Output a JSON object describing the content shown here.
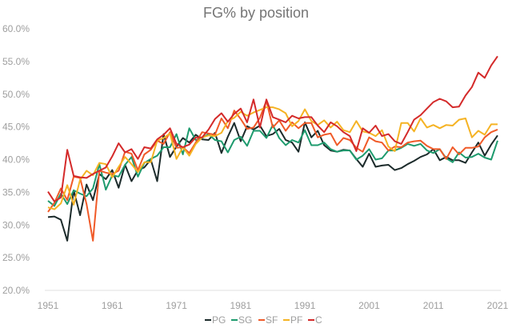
{
  "chart_data": {
    "type": "line",
    "title": "FG% by position",
    "xlabel": "",
    "ylabel": "",
    "ylim": [
      0.2,
      0.6
    ],
    "xlim": [
      1951,
      2021
    ],
    "grid": false,
    "legend_position": "bottom",
    "yticks": [
      "20.0%",
      "25.0%",
      "30.0%",
      "35.0%",
      "40.0%",
      "45.0%",
      "50.0%",
      "55.0%",
      "60.0%"
    ],
    "xticks": [
      "1951",
      "1961",
      "1971",
      "1981",
      "1991",
      "2001",
      "2011",
      "2021"
    ],
    "x": [
      1951,
      1952,
      1953,
      1954,
      1955,
      1956,
      1957,
      1958,
      1959,
      1960,
      1961,
      1962,
      1963,
      1964,
      1965,
      1966,
      1967,
      1968,
      1969,
      1970,
      1971,
      1972,
      1973,
      1974,
      1975,
      1976,
      1977,
      1978,
      1979,
      1980,
      1981,
      1982,
      1983,
      1984,
      1985,
      1986,
      1987,
      1988,
      1989,
      1990,
      1991,
      1992,
      1993,
      1994,
      1995,
      1996,
      1997,
      1998,
      1999,
      2000,
      2001,
      2002,
      2003,
      2004,
      2005,
      2006,
      2007,
      2008,
      2009,
      2010,
      2011,
      2012,
      2013,
      2014,
      2015,
      2016,
      2017,
      2018,
      2019,
      2020,
      2021
    ],
    "series": [
      {
        "name": "PG",
        "color": "#1c2b2b",
        "values": [
          31.2,
          31.3,
          30.8,
          27.6,
          35.3,
          31.5,
          36.2,
          33.8,
          37.8,
          37.0,
          38.4,
          35.7,
          39.2,
          36.7,
          38.4,
          38.8,
          40.0,
          36.7,
          43.9,
          40.4,
          42.0,
          43.3,
          42.6,
          43.8,
          43.1,
          43.0,
          44.1,
          41.0,
          43.5,
          45.6,
          42.8,
          45.1,
          44.6,
          45.2,
          43.6,
          43.9,
          44.7,
          43.0,
          42.6,
          41.2,
          45.7,
          43.4,
          44.4,
          42.2,
          41.4,
          41.2,
          41.5,
          41.4,
          40.1,
          38.9,
          40.9,
          38.9,
          39.1,
          39.2,
          38.4,
          38.7,
          39.3,
          39.8,
          40.4,
          40.8,
          41.6,
          39.9,
          40.4,
          39.9,
          39.9,
          39.5,
          41.1,
          42.6,
          40.6,
          42.3,
          43.7
        ]
      },
      {
        "name": "SG",
        "color": "#1e9b6e",
        "values": [
          33.7,
          32.9,
          34.8,
          33.2,
          35.3,
          34.8,
          34.4,
          35.6,
          39.3,
          35.4,
          37.6,
          37.4,
          39.2,
          40.4,
          37.4,
          39.5,
          40.1,
          40.6,
          41.9,
          41.9,
          43.9,
          40.8,
          44.8,
          43.0,
          43.3,
          43.9,
          43.0,
          42.8,
          41.1,
          43.0,
          43.5,
          42.1,
          44.4,
          44.4,
          43.3,
          45.3,
          43.3,
          42.2,
          43.0,
          42.6,
          44.5,
          42.2,
          42.2,
          42.6,
          41.6,
          41.2,
          41.4,
          41.4,
          40.0,
          40.6,
          41.6,
          40.0,
          40.2,
          41.4,
          41.4,
          41.8,
          42.4,
          42.1,
          42.4,
          41.4,
          41.0,
          41.6,
          40.2,
          39.6,
          41.1,
          40.3,
          40.4,
          40.9,
          40.3,
          40.0,
          42.9
        ]
      },
      {
        "name": "SF",
        "color": "#f05a28",
        "values": [
          32.0,
          33.4,
          35.6,
          33.8,
          37.4,
          37.2,
          33.2,
          27.6,
          38.3,
          38.0,
          37.8,
          38.3,
          41.2,
          40.9,
          38.4,
          40.8,
          41.5,
          42.9,
          42.4,
          44.2,
          41.8,
          41.9,
          41.0,
          42.6,
          44.2,
          44.0,
          43.8,
          46.3,
          44.8,
          47.5,
          46.2,
          44.7,
          44.9,
          46.4,
          49.0,
          44.9,
          46.0,
          44.4,
          45.7,
          44.8,
          45.6,
          45.6,
          43.4,
          43.8,
          44.0,
          42.2,
          43.3,
          43.0,
          41.8,
          41.2,
          43.4,
          42.8,
          42.6,
          41.4,
          42.0,
          41.9,
          42.6,
          42.8,
          42.9,
          42.1,
          41.6,
          41.6,
          40.1,
          41.9,
          40.8,
          41.8,
          41.8,
          42.0,
          43.4,
          44.2,
          44.6
        ]
      },
      {
        "name": "PF",
        "color": "#f5b324",
        "values": [
          32.7,
          32.4,
          33.3,
          36.1,
          33.1,
          36.9,
          38.3,
          37.6,
          39.5,
          39.3,
          37.3,
          38.9,
          40.4,
          39.3,
          38.1,
          39.6,
          39.6,
          42.9,
          43.3,
          44.0,
          40.1,
          41.9,
          40.6,
          42.4,
          43.4,
          43.7,
          43.6,
          44.1,
          45.9,
          46.4,
          47.3,
          46.7,
          47.2,
          47.6,
          48.0,
          48.0,
          47.7,
          47.1,
          45.1,
          45.9,
          47.7,
          45.9,
          45.3,
          46.0,
          44.9,
          45.8,
          44.5,
          44.2,
          45.9,
          44.3,
          44.1,
          43.6,
          44.5,
          42.0,
          41.3,
          45.6,
          45.6,
          44.3,
          46.3,
          44.9,
          45.3,
          44.8,
          45.3,
          45.2,
          46.1,
          46.3,
          43.4,
          44.4,
          43.8,
          45.4,
          45.4
        ]
      },
      {
        "name": "C",
        "color": "#d42a2a",
        "values": [
          35.1,
          33.6,
          34.2,
          41.5,
          37.5,
          37.3,
          37.2,
          37.8,
          38.3,
          38.8,
          40.5,
          42.5,
          41.1,
          41.6,
          40.1,
          41.9,
          41.7,
          43.1,
          43.8,
          44.8,
          42.4,
          41.9,
          42.3,
          43.4,
          43.4,
          44.6,
          46.2,
          47.1,
          45.8,
          47.0,
          47.8,
          45.7,
          49.2,
          44.9,
          49.2,
          46.5,
          46.1,
          45.7,
          46.7,
          46.3,
          46.5,
          46.5,
          45.2,
          44.2,
          45.7,
          45.1,
          44.2,
          43.6,
          41.3,
          44.8,
          44.1,
          45.2,
          43.6,
          43.9,
          42.8,
          42.4,
          44.2,
          46.1,
          46.8,
          47.8,
          48.8,
          49.3,
          48.9,
          48.0,
          48.1,
          49.8,
          51.1,
          53.3,
          52.5,
          54.4,
          55.8
        ]
      }
    ]
  }
}
